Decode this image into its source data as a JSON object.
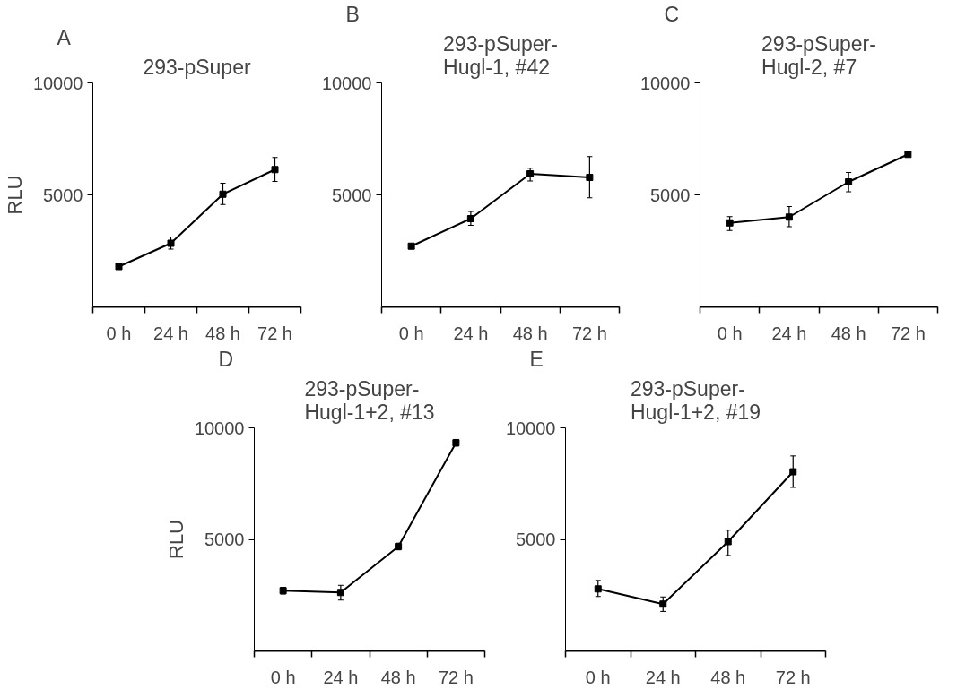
{
  "chart_data": [
    {
      "type": "line",
      "title": "293-pSuper",
      "ylabel": "RLU",
      "annotations": [
        "A"
      ],
      "categories": [
        "0 h",
        "24 h",
        "48 h",
        "72 h"
      ],
      "marker": "square",
      "ylim": [
        0,
        10000
      ],
      "yticks": [
        5000,
        10000
      ],
      "series": [
        {
          "color": "#000000",
          "values": [
            1800,
            2840,
            5030,
            6130
          ],
          "errors": [
            100,
            [
              2580,
              3120
            ],
            [
              4570,
              5520
            ],
            [
              5600,
              6670
            ]
          ]
        }
      ]
    },
    {
      "type": "line",
      "title": "293-pSuper-\nHugl-1, #42",
      "annotations": [
        "B"
      ],
      "categories": [
        "0 h",
        "24 h",
        "48 h",
        "72 h"
      ],
      "marker": "square",
      "ylim": [
        0,
        10000
      ],
      "yticks": [
        5000,
        10000
      ],
      "series": [
        {
          "color": "#000000",
          "values": [
            2710,
            3940,
            5940,
            5780
          ],
          "errors": [
            100,
            [
              3640,
              4260
            ],
            [
              5620,
              6190
            ],
            [
              4870,
              6710
            ]
          ]
        }
      ]
    },
    {
      "type": "line",
      "title": "293-pSuper-\nHugl-2, #7",
      "annotations": [
        "C"
      ],
      "categories": [
        "0 h",
        "24 h",
        "48 h",
        "72 h"
      ],
      "marker": "square",
      "ylim": [
        0,
        10000
      ],
      "yticks": [
        5000,
        10000
      ],
      "series": [
        {
          "color": "#000000",
          "values": [
            3750,
            4010,
            5580,
            6810
          ],
          "errors": [
            [
              3410,
              4030
            ],
            [
              3580,
              4480
            ],
            [
              5140,
              6000
            ],
            100
          ]
        }
      ]
    },
    {
      "type": "line",
      "title": "293-pSuper-\nHugl-1+2, #13",
      "ylabel": "RLU",
      "annotations": [
        "D"
      ],
      "categories": [
        "0 h",
        "24 h",
        "48 h",
        "72 h"
      ],
      "marker": "square",
      "ylim": [
        0,
        10000
      ],
      "yticks": [
        5000,
        10000
      ],
      "series": [
        {
          "color": "#000000",
          "values": [
            2700,
            2620,
            4680,
            9330
          ],
          "errors": [
            150,
            [
              2280,
              2940
            ],
            150,
            150
          ]
        }
      ]
    },
    {
      "type": "line",
      "title": "293-pSuper-\nHugl-1+2, #19",
      "annotations": [
        "E"
      ],
      "categories": [
        "0 h",
        "24 h",
        "48 h",
        "72 h"
      ],
      "marker": "square",
      "ylim": [
        0,
        10000
      ],
      "yticks": [
        5000,
        10000
      ],
      "series": [
        {
          "color": "#000000",
          "values": [
            2780,
            2100,
            4900,
            8030
          ],
          "errors": [
            [
              2440,
              3160
            ],
            [
              1770,
              2420
            ],
            [
              4280,
              5410
            ],
            [
              7330,
              8740
            ]
          ]
        }
      ]
    }
  ]
}
